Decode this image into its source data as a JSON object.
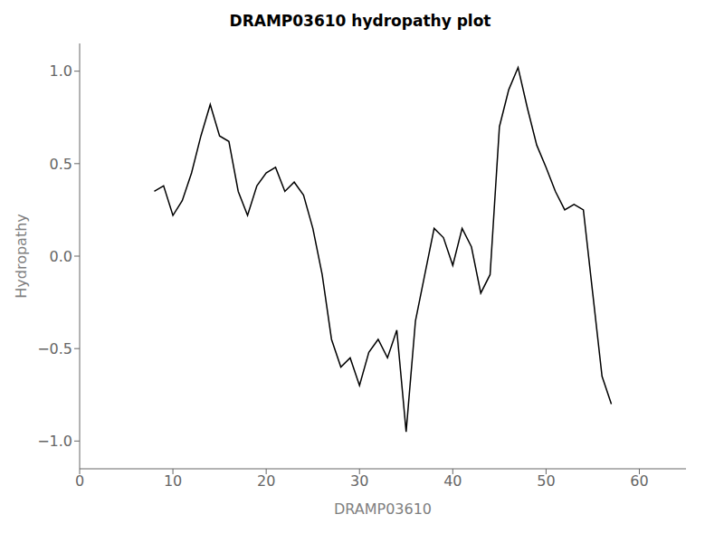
{
  "chart_data": {
    "type": "line",
    "title": "DRAMP03610 hydropathy plot",
    "xlabel": "DRAMP03610",
    "ylabel": "Hydropathy",
    "xlim": [
      0,
      65
    ],
    "ylim": [
      -1.15,
      1.15
    ],
    "xticks": [
      0,
      10,
      20,
      30,
      40,
      50,
      60
    ],
    "yticks": [
      {
        "value": -1.0,
        "label": "−1.0"
      },
      {
        "value": -0.5,
        "label": "−0.5"
      },
      {
        "value": 0.0,
        "label": "0.0"
      },
      {
        "value": 0.5,
        "label": "0.5"
      },
      {
        "value": 1.0,
        "label": "1.0"
      }
    ],
    "color": "#000000",
    "grid": false,
    "x": [
      8,
      9,
      10,
      11,
      12,
      13,
      14,
      15,
      16,
      17,
      18,
      19,
      20,
      21,
      22,
      23,
      24,
      25,
      26,
      27,
      28,
      29,
      30,
      31,
      32,
      33,
      34,
      35,
      36,
      37,
      38,
      39,
      40,
      41,
      42,
      43,
      44,
      45,
      46,
      47,
      48,
      49,
      50,
      51,
      52,
      53,
      54,
      55,
      56,
      57
    ],
    "values": [
      0.35,
      0.38,
      0.22,
      0.3,
      0.45,
      0.65,
      0.82,
      0.65,
      0.62,
      0.35,
      0.22,
      0.38,
      0.45,
      0.48,
      0.35,
      0.4,
      0.33,
      0.15,
      -0.1,
      -0.45,
      -0.6,
      -0.55,
      -0.7,
      -0.52,
      -0.45,
      -0.55,
      -0.4,
      -0.95,
      -0.35,
      -0.1,
      0.15,
      0.1,
      -0.05,
      0.15,
      0.05,
      -0.2,
      -0.1,
      0.7,
      0.9,
      1.02,
      0.8,
      0.6,
      0.48,
      0.35,
      0.25,
      0.28,
      0.25,
      -0.2,
      -0.65,
      -0.8
    ]
  }
}
